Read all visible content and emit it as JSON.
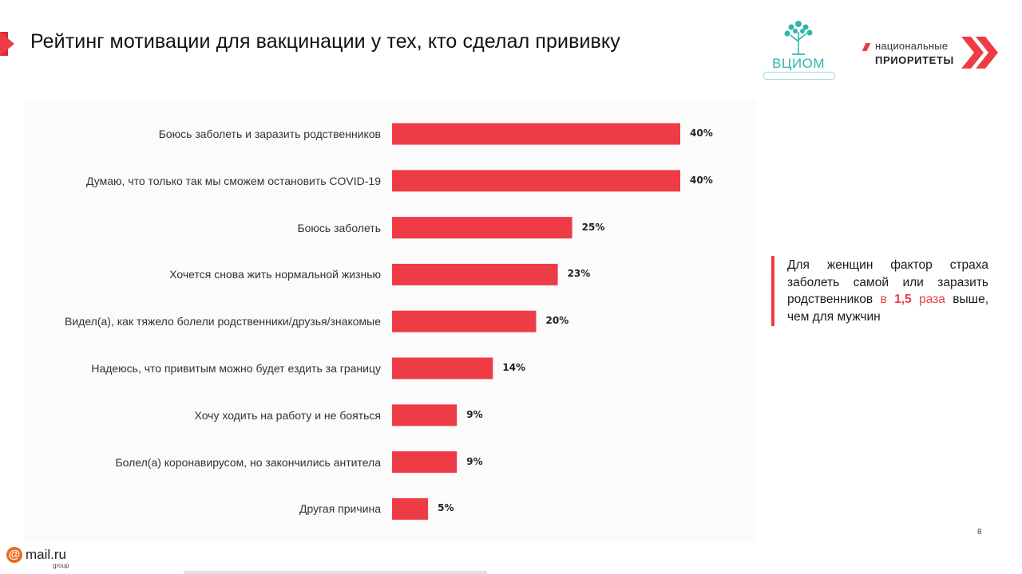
{
  "slide": {
    "title": "Рейтинг мотивации для вакцинации у тех, кто сделал прививку",
    "accent_color": "#ee3c46",
    "page_number": "8"
  },
  "logos": {
    "vciom": "ВЦИОМ",
    "np_line1": "национальные",
    "np_line2": "ПРИОРИТЕТЫ",
    "mailru_name": "mail.ru",
    "mailru_group": "group",
    "mailru_at": "@"
  },
  "chart_data": {
    "type": "bar",
    "orientation": "horizontal",
    "categories": [
      "Боюсь заболеть и заразить родственников",
      "Думаю, что только так мы сможем остановить COVID-19",
      "Боюсь заболеть",
      "Хочется снова жить нормальной жизнью",
      "Видел(а), как тяжело болели родственники/друзья/знакомые",
      "Надеюсь, что привитым можно будет ездить за границу",
      "Хочу ходить на работу и не бояться",
      "Болел(а) коронавирусом, но закончились антитела",
      "Другая причина"
    ],
    "values": [
      40,
      40,
      25,
      23,
      20,
      14,
      9,
      9,
      5
    ],
    "value_labels": [
      "40%",
      "40%",
      "25%",
      "23%",
      "20%",
      "14%",
      "9%",
      "9%",
      "5%"
    ],
    "bar_color": "#ee3c46",
    "grid": false,
    "legend": "none"
  },
  "note": {
    "text_before": "Для женщин фактор страха заболеть самой или заразить родственников ",
    "highlight_pre": "в ",
    "highlight_num": "1,5",
    "highlight_post": " раза",
    "text_after": " выше, чем для мужчин"
  }
}
